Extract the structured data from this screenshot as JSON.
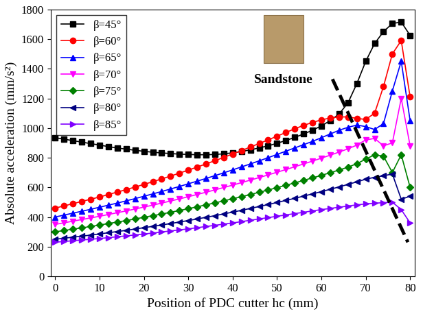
{
  "chart_data": {
    "type": "line",
    "x_label": "Position of PDC cutter hc (mm)",
    "y_label": "Absolute acceleration (mm/s²)",
    "annotation": "Sandstone",
    "x": [
      0,
      2,
      4,
      6,
      8,
      10,
      12,
      14,
      16,
      18,
      20,
      22,
      24,
      26,
      28,
      30,
      32,
      34,
      36,
      38,
      40,
      42,
      44,
      46,
      48,
      50,
      52,
      54,
      56,
      58,
      60,
      62,
      64,
      66,
      68,
      70,
      72,
      74,
      76,
      78,
      80
    ],
    "series": [
      {
        "name": "β=45°",
        "color": "#000000",
        "marker": "square",
        "values": [
          935,
          925,
          915,
          905,
          895,
          885,
          875,
          865,
          858,
          850,
          843,
          837,
          832,
          828,
          824,
          822,
          820,
          820,
          822,
          826,
          833,
          842,
          853,
          866,
          880,
          897,
          916,
          937,
          960,
          985,
          1015,
          1050,
          1095,
          1170,
          1300,
          1450,
          1570,
          1650,
          1705,
          1715,
          1625
        ]
      },
      {
        "name": "β=60°",
        "color": "#ff0000",
        "marker": "circle",
        "values": [
          460,
          475,
          490,
          505,
          520,
          535,
          552,
          568,
          585,
          602,
          620,
          638,
          657,
          676,
          696,
          716,
          737,
          758,
          780,
          802,
          825,
          848,
          872,
          896,
          920,
          945,
          970,
          995,
          1018,
          1038,
          1055,
          1068,
          1075,
          1075,
          1065,
          1058,
          1100,
          1280,
          1500,
          1590,
          1210
        ]
      },
      {
        "name": "β=65°",
        "color": "#0000ff",
        "marker": "triangle_up",
        "values": [
          400,
          413,
          426,
          439,
          452,
          466,
          480,
          494,
          509,
          524,
          540,
          556,
          572,
          589,
          606,
          624,
          642,
          660,
          679,
          698,
          718,
          738,
          758,
          779,
          800,
          822,
          844,
          866,
          888,
          910,
          935,
          960,
          985,
          1005,
          1020,
          1010,
          990,
          1030,
          1250,
          1450,
          1050
        ]
      },
      {
        "name": "β=70°",
        "color": "#ff00ff",
        "marker": "triangle_down",
        "values": [
          350,
          361,
          372,
          383,
          394,
          405,
          417,
          429,
          441,
          454,
          467,
          480,
          494,
          508,
          522,
          537,
          552,
          567,
          583,
          599,
          615,
          632,
          649,
          666,
          684,
          702,
          720,
          739,
          758,
          777,
          797,
          817,
          838,
          860,
          885,
          920,
          930,
          880,
          900,
          1200,
          880
        ]
      },
      {
        "name": "β=75°",
        "color": "#008000",
        "marker": "diamond",
        "values": [
          300,
          309,
          318,
          327,
          336,
          346,
          356,
          366,
          376,
          387,
          398,
          409,
          420,
          432,
          444,
          456,
          469,
          482,
          495,
          509,
          523,
          537,
          552,
          567,
          582,
          598,
          614,
          630,
          647,
          664,
          681,
          699,
          717,
          736,
          760,
          790,
          820,
          810,
          700,
          820,
          600
        ]
      },
      {
        "name": "β=80°",
        "color": "#000080",
        "marker": "triangle_left",
        "values": [
          250,
          257,
          264,
          271,
          278,
          286,
          294,
          302,
          310,
          319,
          328,
          337,
          346,
          356,
          366,
          376,
          387,
          398,
          409,
          421,
          433,
          445,
          458,
          471,
          484,
          498,
          512,
          526,
          541,
          556,
          571,
          587,
          603,
          620,
          637,
          655,
          668,
          678,
          690,
          520,
          540
        ]
      },
      {
        "name": "β=85°",
        "color": "#8000ff",
        "marker": "triangle_right",
        "values": [
          230,
          235,
          240,
          245,
          250,
          255,
          261,
          267,
          273,
          279,
          285,
          292,
          299,
          306,
          313,
          320,
          328,
          336,
          344,
          352,
          360,
          369,
          378,
          387,
          396,
          405,
          414,
          423,
          432,
          441,
          450,
          458,
          466,
          474,
          482,
          488,
          493,
          497,
          500,
          450,
          360
        ]
      }
    ],
    "trend_line": {
      "x": [
        62.5,
        79.5
      ],
      "y": [
        1330,
        230
      ],
      "color": "#000000",
      "line_style": "dashed"
    },
    "xlim": [
      -1,
      81
    ],
    "xticks": [
      0,
      10,
      20,
      30,
      40,
      50,
      60,
      70,
      80
    ],
    "ylim": [
      0,
      1800
    ],
    "yticks": [
      0,
      200,
      400,
      600,
      800,
      1000,
      1200,
      1400,
      1600,
      1800
    ],
    "legend": "upper left",
    "grid": false
  }
}
